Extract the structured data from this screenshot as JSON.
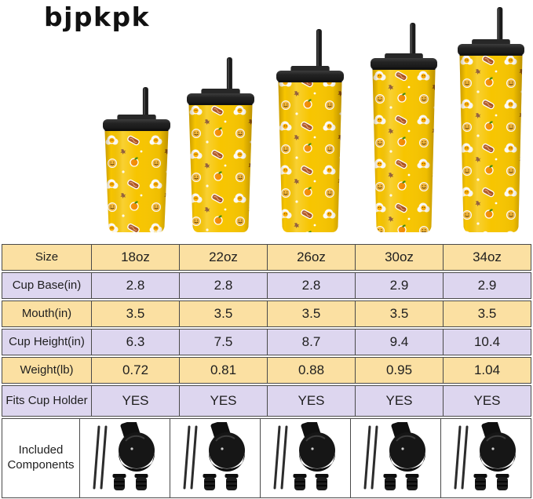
{
  "brand": {
    "logo": "bjpkpk"
  },
  "products": {
    "sizes": [
      "18oz",
      "22oz",
      "26oz",
      "30oz",
      "34oz"
    ],
    "cup_color": "#F7C500",
    "lid_color": "#1E1E1E",
    "pattern_icons": [
      "fried-egg-icon",
      "bacon-icon",
      "orange-icon",
      "smiley-pancake-icon"
    ]
  },
  "table": {
    "border_color": "#4a4a4a",
    "row_colors": {
      "peach": "#FBE0A2",
      "lavender": "#DDD6EF"
    },
    "rows": [
      {
        "label": "Size",
        "values": [
          "18oz",
          "22oz",
          "26oz",
          "30oz",
          "34oz"
        ]
      },
      {
        "label": "Cup Base(in)",
        "values": [
          "2.8",
          "2.8",
          "2.8",
          "2.9",
          "2.9"
        ]
      },
      {
        "label": "Mouth(in)",
        "values": [
          "3.5",
          "3.5",
          "3.5",
          "3.5",
          "3.5"
        ]
      },
      {
        "label": "Cup Height(in)",
        "values": [
          "6.3",
          "7.5",
          "8.7",
          "9.4",
          "10.4"
        ]
      },
      {
        "label": "Weight(lb)",
        "values": [
          "0.72",
          "0.81",
          "0.88",
          "0.95",
          "1.04"
        ]
      },
      {
        "label": "Fits Cup Holder",
        "values": [
          "YES",
          "YES",
          "YES",
          "YES",
          "YES"
        ]
      }
    ],
    "components_row": {
      "label_line1": "Included",
      "label_line2": "Components",
      "icons": [
        "straw-icon",
        "flip-lid-icon",
        "plug-icon"
      ]
    }
  }
}
